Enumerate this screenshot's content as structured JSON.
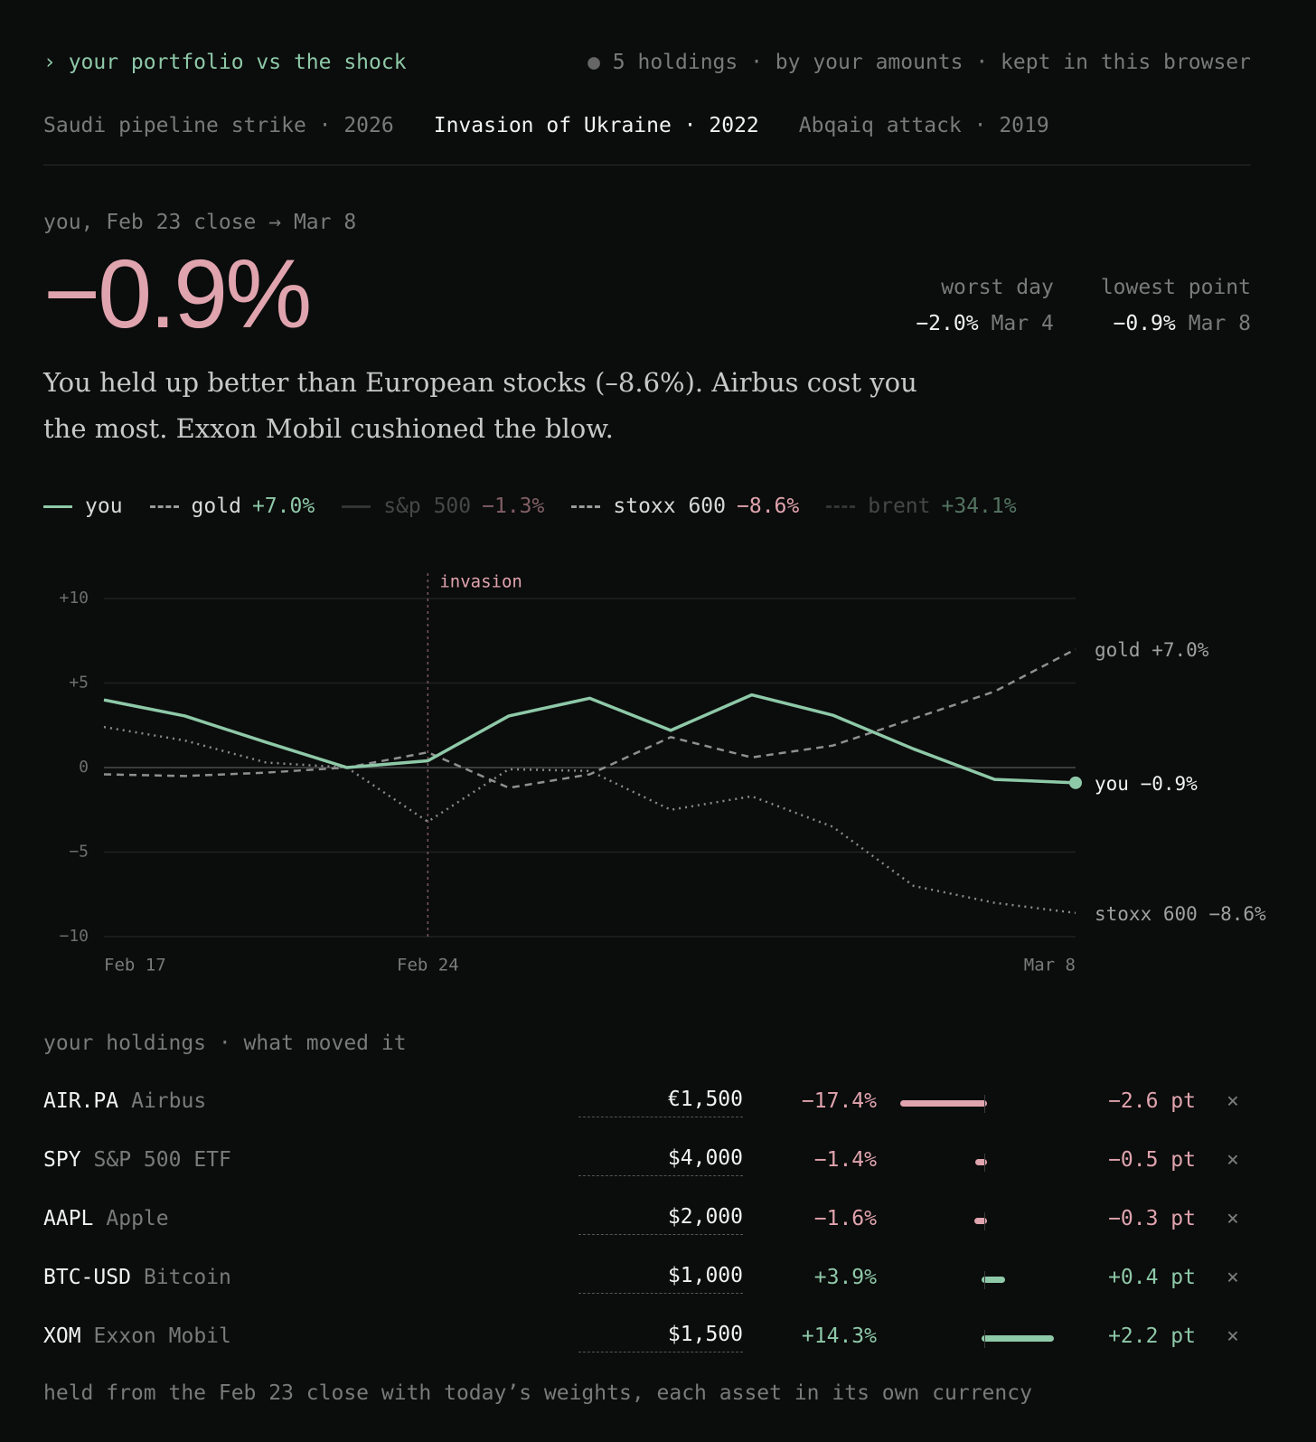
{
  "header": {
    "title": "› your portfolio vs the shock",
    "status": "5 holdings · by your amounts · kept in this browser"
  },
  "tabs": {
    "items": [
      "Saudi pipeline strike · 2026",
      "Invasion of Ukraine · 2022",
      "Abqaiq attack · 2019"
    ],
    "active": 1
  },
  "summary": {
    "caption": "you, Feb 23 close → Mar 8",
    "headline": "−0.9%",
    "stats": [
      {
        "label": "worst day",
        "value": "−2.0%",
        "date": "Mar 4"
      },
      {
        "label": "lowest point",
        "value": "−0.9%",
        "date": "Mar 8"
      }
    ],
    "text": "You held up better than European stocks (–8.6%). Airbus cost you the most. Exxon Mobil cushioned the blow."
  },
  "legend": [
    {
      "name": "you",
      "change": null,
      "active": true,
      "dash": "solid",
      "color": "#8ec9a8"
    },
    {
      "name": "gold",
      "change": "+7.0%",
      "active": true,
      "dash": "dashed",
      "color": "#9a9a9a"
    },
    {
      "name": "s&p 500",
      "change": "−1.3%",
      "active": false,
      "dash": "solid",
      "color": "#555555"
    },
    {
      "name": "stoxx 600",
      "change": "−8.6%",
      "active": true,
      "dash": "dashed",
      "color": "#9a9a9a"
    },
    {
      "name": "brent",
      "change": "+34.1%",
      "active": false,
      "dash": "dashed",
      "color": "#555555"
    }
  ],
  "chart_data": {
    "type": "line",
    "categories": [
      "Feb 17",
      null,
      null,
      null,
      "Feb 24",
      null,
      null,
      null,
      null,
      null,
      null,
      null,
      "Mar 8"
    ],
    "series": [
      {
        "name": "gold",
        "end_label": "gold +7.0%",
        "color": "#8f8f8f",
        "dash": "dashed",
        "values": [
          -0.4,
          -0.5,
          -0.3,
          0,
          0.9,
          -1.2,
          -0.4,
          1.8,
          0.6,
          1.3,
          2.9,
          4.5,
          7.0
        ]
      },
      {
        "name": "stoxx 600",
        "end_label": "stoxx 600 −8.6%",
        "color": "#8a8a8a",
        "dash": "dotted",
        "values": [
          2.4,
          1.6,
          0.3,
          0,
          -3.2,
          -0.1,
          -0.2,
          -2.5,
          -1.7,
          -3.5,
          -7.0,
          -8.0,
          -8.6
        ]
      },
      {
        "name": "you",
        "end_label": "you −0.9%",
        "color": "#8ec9a8",
        "dash": "solid",
        "values": [
          4.0,
          3.05,
          1.5,
          0,
          0.4,
          3.05,
          4.1,
          2.2,
          4.3,
          3.1,
          1.1,
          -0.7,
          -0.9
        ]
      }
    ],
    "ylim": [
      -10,
      10
    ],
    "yticks": [
      {
        "value": 10,
        "label": "+10"
      },
      {
        "value": 5,
        "label": "+5"
      },
      0,
      {
        "value": -5,
        "label": "−5"
      },
      {
        "value": -10,
        "label": "−10"
      }
    ],
    "grid": true,
    "annotation": {
      "index": 4,
      "label": "invasion"
    }
  },
  "holdings": {
    "title": "your holdings · what moved it",
    "rows": [
      {
        "ticker": "AIR.PA",
        "name": "Airbus",
        "amount": "€1,500",
        "change": -17.4,
        "change_label": "−17.4%",
        "contribution": "−2.6 pt"
      },
      {
        "ticker": "SPY",
        "name": "S&P 500 ETF",
        "amount": "$4,000",
        "change": -1.4,
        "change_label": "−1.4%",
        "contribution": "−0.5 pt"
      },
      {
        "ticker": "AAPL",
        "name": "Apple",
        "amount": "$2,000",
        "change": -1.6,
        "change_label": "−1.6%",
        "contribution": "−0.3 pt"
      },
      {
        "ticker": "BTC-USD",
        "name": "Bitcoin",
        "amount": "$1,000",
        "change": 3.9,
        "change_label": "+3.9%",
        "contribution": "+0.4 pt"
      },
      {
        "ticker": "XOM",
        "name": "Exxon Mobil",
        "amount": "$1,500",
        "change": 14.3,
        "change_label": "+14.3%",
        "contribution": "+2.2 pt"
      }
    ],
    "remove": "×",
    "note": "held from the Feb 23 close with today’s weights, each asset in its own currency"
  }
}
